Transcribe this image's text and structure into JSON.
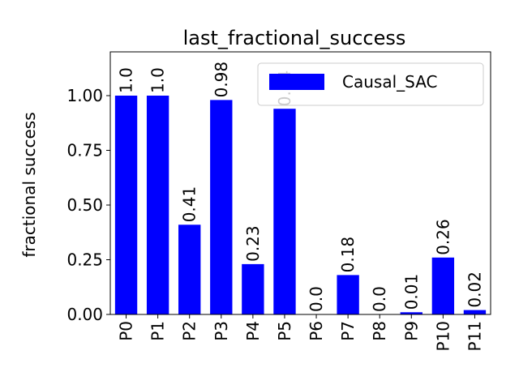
{
  "chart_data": {
    "type": "bar",
    "title": "last_fractional_success",
    "xlabel": "",
    "ylabel": "fractional success",
    "categories": [
      "P0",
      "P1",
      "P2",
      "P3",
      "P4",
      "P5",
      "P6",
      "P7",
      "P8",
      "P9",
      "P10",
      "P11"
    ],
    "series": [
      {
        "name": "Causal_SAC",
        "color": "#0000ff",
        "values": [
          1.0,
          1.0,
          0.41,
          0.98,
          0.23,
          0.94,
          0.0,
          0.18,
          0.0,
          0.01,
          0.26,
          0.02
        ]
      }
    ],
    "data_labels": [
      "1.0",
      "1.0",
      "0.41",
      "0.98",
      "0.23",
      "0.94",
      "0.0",
      "0.18",
      "0.0",
      "0.01",
      "0.26",
      "0.02"
    ],
    "ylim": [
      0,
      1.2
    ],
    "yticks": [
      0.0,
      0.25,
      0.5,
      0.75,
      1.0
    ],
    "ytick_labels": [
      "0.00",
      "0.25",
      "0.50",
      "0.75",
      "1.00"
    ],
    "grid": false,
    "legend": "top-right"
  }
}
